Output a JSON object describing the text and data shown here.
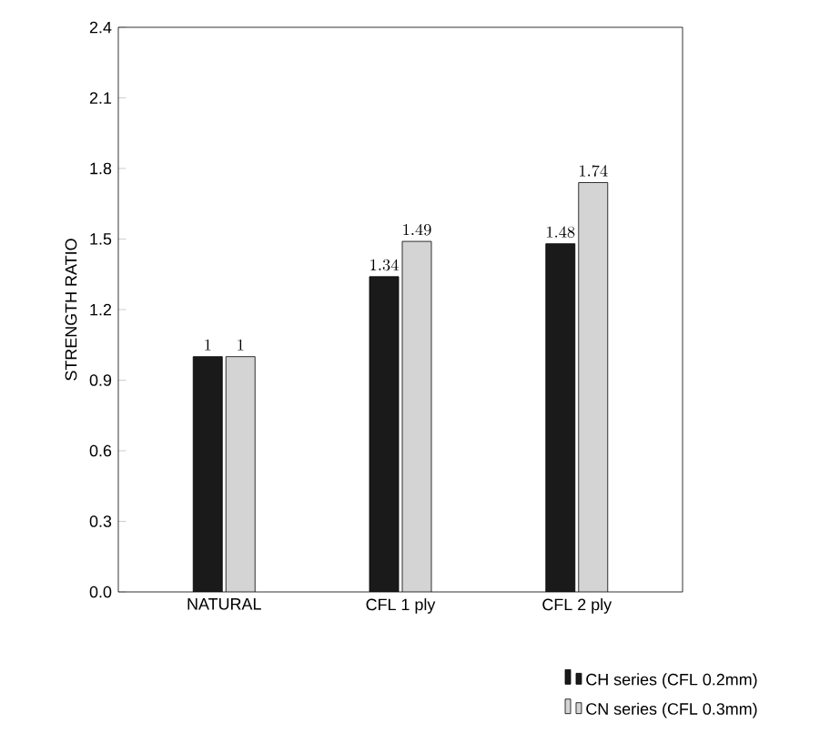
{
  "chart_data": {
    "type": "bar",
    "ylabel": "STRENGTH RATIO",
    "categories": [
      "NATURAL",
      "CFL 1 ply",
      "CFL 2 ply"
    ],
    "series": [
      {
        "name": "CH series (CFL 0.2mm)",
        "color": "#1a1a1a",
        "values": [
          1,
          1.34,
          1.48
        ]
      },
      {
        "name": "CN series (CFL 0.3mm)",
        "color": "#d4d4d4",
        "values": [
          1,
          1.49,
          1.74
        ]
      }
    ],
    "ylim": [
      0,
      2.4
    ],
    "yticks": [
      {
        "value": 0,
        "label": "0.0"
      },
      0.3,
      0.6,
      0.9,
      1.2,
      1.5,
      1.8,
      2.1,
      2.4
    ],
    "data_labels": true,
    "grid": false,
    "legend": "bottom right"
  }
}
